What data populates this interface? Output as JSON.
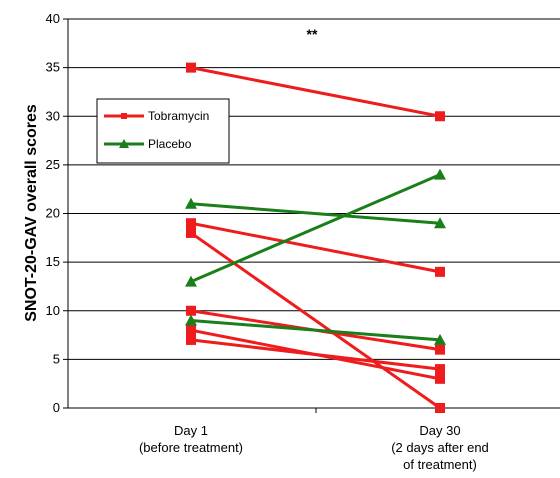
{
  "chart_data": {
    "type": "line",
    "title": "",
    "ylabel": "SNOT-20-GAV overall scores",
    "xlabel": "",
    "ylim": [
      0,
      40
    ],
    "yticks": [
      0,
      5,
      10,
      15,
      20,
      25,
      30,
      35,
      40
    ],
    "grid": true,
    "categories": [
      [
        "Day 1",
        "(before treatment)"
      ],
      [
        "Day 30",
        "(2 days after end",
        "of  treatment)"
      ]
    ],
    "legend": {
      "position": "upper-left",
      "entries": [
        {
          "name": "Tobramycin",
          "color": "#ee1c1c",
          "marker": "square"
        },
        {
          "name": "Placebo",
          "color": "#1a7f1a",
          "marker": "triangle"
        }
      ]
    },
    "annotations": [
      "**"
    ],
    "series": [
      {
        "group": "Tobramycin",
        "values": [
          35,
          30
        ]
      },
      {
        "group": "Tobramycin",
        "values": [
          19,
          14
        ]
      },
      {
        "group": "Tobramycin",
        "values": [
          18,
          0
        ]
      },
      {
        "group": "Tobramycin",
        "values": [
          10,
          6
        ]
      },
      {
        "group": "Tobramycin",
        "values": [
          8,
          3
        ]
      },
      {
        "group": "Tobramycin",
        "values": [
          7,
          4
        ]
      },
      {
        "group": "Placebo",
        "values": [
          21,
          19
        ]
      },
      {
        "group": "Placebo",
        "values": [
          13,
          24
        ]
      },
      {
        "group": "Placebo",
        "values": [
          9,
          7
        ]
      }
    ]
  }
}
